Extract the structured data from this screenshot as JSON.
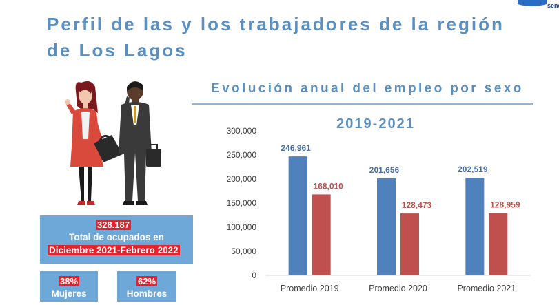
{
  "header": {
    "title_line1": "Perfil de las y los trabajadores de la región",
    "title_line2": "de Los Lagos",
    "logo_text": "sence"
  },
  "summary": {
    "total_value": "328.187",
    "total_label": "Total de ocupados en",
    "period_label": "Diciembre 2021-Febrero 2022",
    "women_pct": "38%",
    "women_label": "Mujeres",
    "men_pct": "62%",
    "men_label": "Hombres"
  },
  "chart_data": {
    "type": "bar",
    "title": "Evolución anual del empleo por sexo",
    "subtitle": "2019-2021",
    "categories": [
      "Promedio 2019",
      "Promedio 2020",
      "Promedio 2021"
    ],
    "series": [
      {
        "values": [
          246961,
          201656,
          202519
        ],
        "labels": [
          "246,961",
          "201,656",
          "202,519"
        ],
        "color": "#4f81bd",
        "label_color": "#4a6fa5"
      },
      {
        "values": [
          168010,
          128473,
          128959
        ],
        "labels": [
          "168,010",
          "128,473",
          "128,959"
        ],
        "color": "#c0504d",
        "label_color": "#c0504d"
      }
    ],
    "ylim": [
      0,
      300000
    ],
    "yticks": [
      0,
      50000,
      100000,
      150000,
      200000,
      250000,
      300000
    ],
    "ytick_labels": [
      "0",
      "50,000",
      "100,000",
      "150,000",
      "200,000",
      "250,000",
      "300,000"
    ],
    "grid": false
  },
  "colors": {
    "accent": "#5b8fc0",
    "box": "#6ea8d8",
    "highlight": "#e3222b"
  }
}
